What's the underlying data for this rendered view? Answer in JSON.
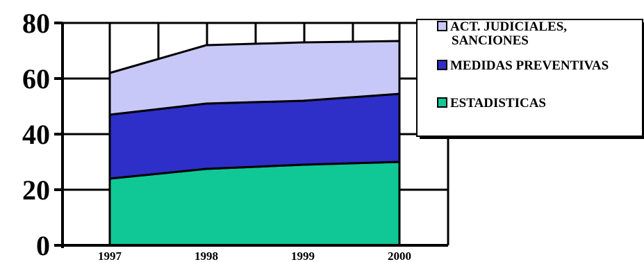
{
  "chart_data": {
    "type": "area",
    "stacked": true,
    "categories": [
      "1997",
      "1998",
      "1999",
      "2000"
    ],
    "yticks": [
      "0",
      "20",
      "40",
      "60",
      "80"
    ],
    "ylim": [
      0,
      80
    ],
    "grid": true,
    "legend_position": "top-right",
    "series": [
      {
        "name": "ESTADISTICAS",
        "values": [
          24,
          27.5,
          29,
          30
        ],
        "color": "#10c896"
      },
      {
        "name": "MEDIDAS PREVENTIVAS",
        "values": [
          23,
          23.5,
          23,
          24.5
        ],
        "color": "#2e2ec8"
      },
      {
        "name": "ACT. JUDICIALES, SANCIONES",
        "values": [
          15,
          21,
          21,
          19
        ],
        "color": "#c8c8f8"
      }
    ],
    "legend": [
      {
        "lines": [
          "ACT. JUDICIALES,",
          "SANCIONES"
        ],
        "color": "#c8c8f8"
      },
      {
        "lines": [
          "MEDIDAS PREVENTIVAS"
        ],
        "color": "#2e2ec8"
      },
      {
        "lines": [
          "ESTADISTICAS"
        ],
        "color": "#10c896"
      }
    ]
  }
}
